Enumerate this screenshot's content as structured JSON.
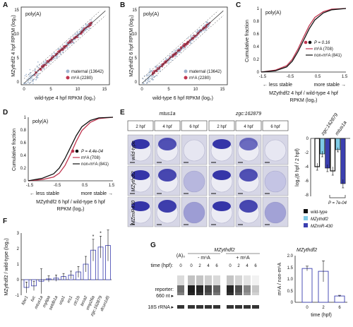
{
  "panels": {
    "A": {
      "letter": "A",
      "label": "poly(A)",
      "ylabel": "MZythdf2 4 hpf RPKM (log₂)",
      "xlabel": "wild-type 4 hpf RPKM (log₂)",
      "legend": [
        "maternal (13642)",
        "m⁶A (2280)"
      ],
      "ticks": [
        "0",
        "5",
        "10",
        "15"
      ],
      "colors": {
        "maternal": "#9fb4cf",
        "m6A": "#c0354f"
      }
    },
    "B": {
      "letter": "B",
      "label": "poly(A)",
      "ylabel": "MZythdf2 6 hpf RPKM (log₂)",
      "xlabel": "wild-type 6 hpf RPKM (log₂)",
      "legend": [
        "maternal (13642)",
        "m⁶A (2280)"
      ],
      "ticks": [
        "0",
        "5",
        "10",
        "15"
      ]
    },
    "C": {
      "letter": "C",
      "label": "poly(A)",
      "ylabel": "Cumulative fraction",
      "xlabel1": "MZythdf2 4 hpf / wild-type 4 hpf",
      "xlabel2": "RPKM (log₂)",
      "pvalue": "P = 0.16",
      "legend": [
        "m⁶A (708)",
        "non-m⁶A (841)"
      ],
      "xticks": [
        "-1.5",
        "-0.5",
        "0.5",
        "1.5"
      ],
      "yticks": [
        "0",
        "0.2",
        "0.4",
        "0.6",
        "0.8",
        "1"
      ],
      "less": "← less stable",
      "more": "more stable →"
    },
    "D": {
      "letter": "D",
      "label": "poly(A)",
      "ylabel": "Cumulative fraction",
      "xlabel1": "MZythdf2 6 hpf / wild-type 6 hpf",
      "xlabel2": "RPKM (log₂)",
      "pvalue": "P = 4.4e-04",
      "legend": [
        "m⁶A (708)",
        "non-m⁶A (841)"
      ],
      "xticks": [
        "-1.5",
        "-0.5",
        "0.5",
        "1.5"
      ],
      "yticks": [
        "0",
        "0.2",
        "0.4",
        "0.6",
        "0.8",
        "1"
      ],
      "less": "← less stable",
      "more": "more stable →"
    },
    "E": {
      "letter": "E",
      "genes": [
        "mtus1a",
        "zgc:162879"
      ],
      "times": [
        "2 hpf",
        "4 hpf",
        "6 hpf"
      ],
      "rows": [
        "wild-type",
        "MZythdf2",
        "MZmiR430"
      ],
      "bar_ylabel": "log₂(6 hpf / 2 hpf)",
      "bar_genes": [
        "zgc:162879",
        "mtus1a"
      ],
      "bar_ticks": [
        "0",
        "-2",
        "-4",
        "-6",
        "-8"
      ],
      "pvalue": "P = 7e-04",
      "legend": [
        "wild-type",
        "MZythdf2",
        "MZmiR-430"
      ],
      "colors": {
        "wt": "#111111",
        "ythdf2": "#7fcbe6",
        "mir430": "#3b3fb0"
      }
    },
    "F": {
      "letter": "F",
      "ylabel": "MZythdf2 / wild-type (log₂)",
      "genes": [
        "fdxr1",
        "tuc",
        "mtus1a",
        "mylipa",
        "setdb1a",
        "usp1",
        "rrs1",
        "ctc1b",
        "brca2",
        "vmp26a",
        "zgc:162879",
        "dcun1d5"
      ],
      "yticks": [
        "-1",
        "0",
        "1",
        "2",
        "3"
      ],
      "star": "*"
    },
    "G": {
      "letter": "G",
      "title": "MZythdf2",
      "time_label": "time (hpf):",
      "lane_a": "(A)₀",
      "minus": "- m⁶A",
      "plus": "+ m⁶A",
      "reporter": "reporter:",
      "size": "660 nt ▸",
      "rrna": "18S rRNA ▸",
      "times": [
        "0",
        "0",
        "2",
        "4",
        "6",
        "0",
        "2",
        "4",
        "6"
      ],
      "bar_title": "MZythdf2",
      "bar_ylabel": "m⁶A / non-m⁶A",
      "bar_xlabel": "time (hpf)",
      "bar_yticks": [
        "0",
        "0.5",
        "1.0",
        "1.5",
        "2.0"
      ]
    }
  },
  "chart_data": [
    {
      "type": "line",
      "title": "C",
      "xlabel": "MZythdf2 4 hpf / wild-type 4 hpf RPKM (log₂)",
      "ylabel": "Cumulative fraction",
      "xlim": [
        -1.5,
        1.5
      ],
      "ylim": [
        0,
        1
      ],
      "series": [
        {
          "name": "m⁶A (708)",
          "color": "#c0354f",
          "x": [
            -1.5,
            -1.0,
            -0.6,
            -0.4,
            -0.2,
            0.0,
            0.2,
            0.4,
            0.7,
            1.0,
            1.5
          ],
          "y": [
            0.0,
            0.03,
            0.1,
            0.2,
            0.36,
            0.55,
            0.73,
            0.86,
            0.95,
            0.99,
            1.0
          ]
        },
        {
          "name": "non-m⁶A (841)",
          "color": "#111111",
          "x": [
            -1.5,
            -1.0,
            -0.6,
            -0.4,
            -0.2,
            0.0,
            0.2,
            0.4,
            0.7,
            1.0,
            1.5
          ],
          "y": [
            0.0,
            0.02,
            0.08,
            0.17,
            0.32,
            0.5,
            0.68,
            0.82,
            0.93,
            0.98,
            1.0
          ]
        }
      ]
    },
    {
      "type": "line",
      "title": "D",
      "xlabel": "MZythdf2 6 hpf / wild-type 6 hpf RPKM (log₂)",
      "ylabel": "Cumulative fraction",
      "xlim": [
        -1.5,
        1.5
      ],
      "ylim": [
        0,
        1
      ],
      "series": [
        {
          "name": "m⁶A (708)",
          "color": "#c0354f",
          "x": [
            -1.5,
            -1.0,
            -0.6,
            -0.4,
            -0.2,
            0.0,
            0.2,
            0.4,
            0.7,
            1.0,
            1.5
          ],
          "y": [
            0.0,
            0.02,
            0.06,
            0.12,
            0.24,
            0.42,
            0.62,
            0.79,
            0.92,
            0.98,
            1.0
          ]
        },
        {
          "name": "non-m⁶A (841)",
          "color": "#111111",
          "x": [
            -1.5,
            -1.0,
            -0.6,
            -0.4,
            -0.2,
            0.0,
            0.2,
            0.4,
            0.7,
            1.0,
            1.5
          ],
          "y": [
            0.0,
            0.04,
            0.11,
            0.2,
            0.35,
            0.53,
            0.71,
            0.85,
            0.95,
            0.99,
            1.0
          ]
        }
      ]
    },
    {
      "type": "bar",
      "title": "E",
      "ylabel": "log₂(6 hpf / 2 hpf)",
      "categories": [
        "zgc:162879",
        "mtus1a"
      ],
      "ylim": [
        -8,
        0
      ],
      "series": [
        {
          "name": "wild-type",
          "values": [
            -4.0,
            -4.6
          ],
          "err": [
            0.5,
            0.6
          ]
        },
        {
          "name": "MZythdf2",
          "values": [
            -2.2,
            -1.6
          ],
          "err": [
            0.4,
            0.3
          ]
        },
        {
          "name": "MZmiR-430",
          "values": [
            -4.2,
            -6.4
          ],
          "err": [
            0.5,
            0.6
          ]
        }
      ]
    },
    {
      "type": "bar",
      "title": "F",
      "ylabel": "MZythdf2 / wild-type (log₂)",
      "categories": [
        "fdxr1",
        "tuc",
        "mtus1a",
        "mylipa",
        "setdb1a",
        "usp1",
        "rrs1",
        "ctc1b",
        "brca2",
        "vmp26a",
        "zgc:162879",
        "dcun1d5"
      ],
      "ylim": [
        -1,
        3
      ],
      "values": [
        -0.5,
        -0.4,
        -0.1,
        0.05,
        0.1,
        0.2,
        0.3,
        0.5,
        1.0,
        1.9,
        2.1,
        2.2
      ],
      "err": [
        0.35,
        0.3,
        0.8,
        0.2,
        0.2,
        0.2,
        0.25,
        0.35,
        0.5,
        0.7,
        0.7,
        1.0
      ],
      "significant": [
        "vmp26a",
        "zgc:162879"
      ]
    },
    {
      "type": "bar",
      "title": "G",
      "ylabel": "m⁶A / non-m⁶A",
      "xlabel": "time (hpf)",
      "categories": [
        "0",
        "2",
        "6"
      ],
      "ylim": [
        0,
        2
      ],
      "values": [
        1.45,
        1.33,
        0.27
      ],
      "err": [
        0.1,
        0.45,
        0.03
      ]
    }
  ]
}
